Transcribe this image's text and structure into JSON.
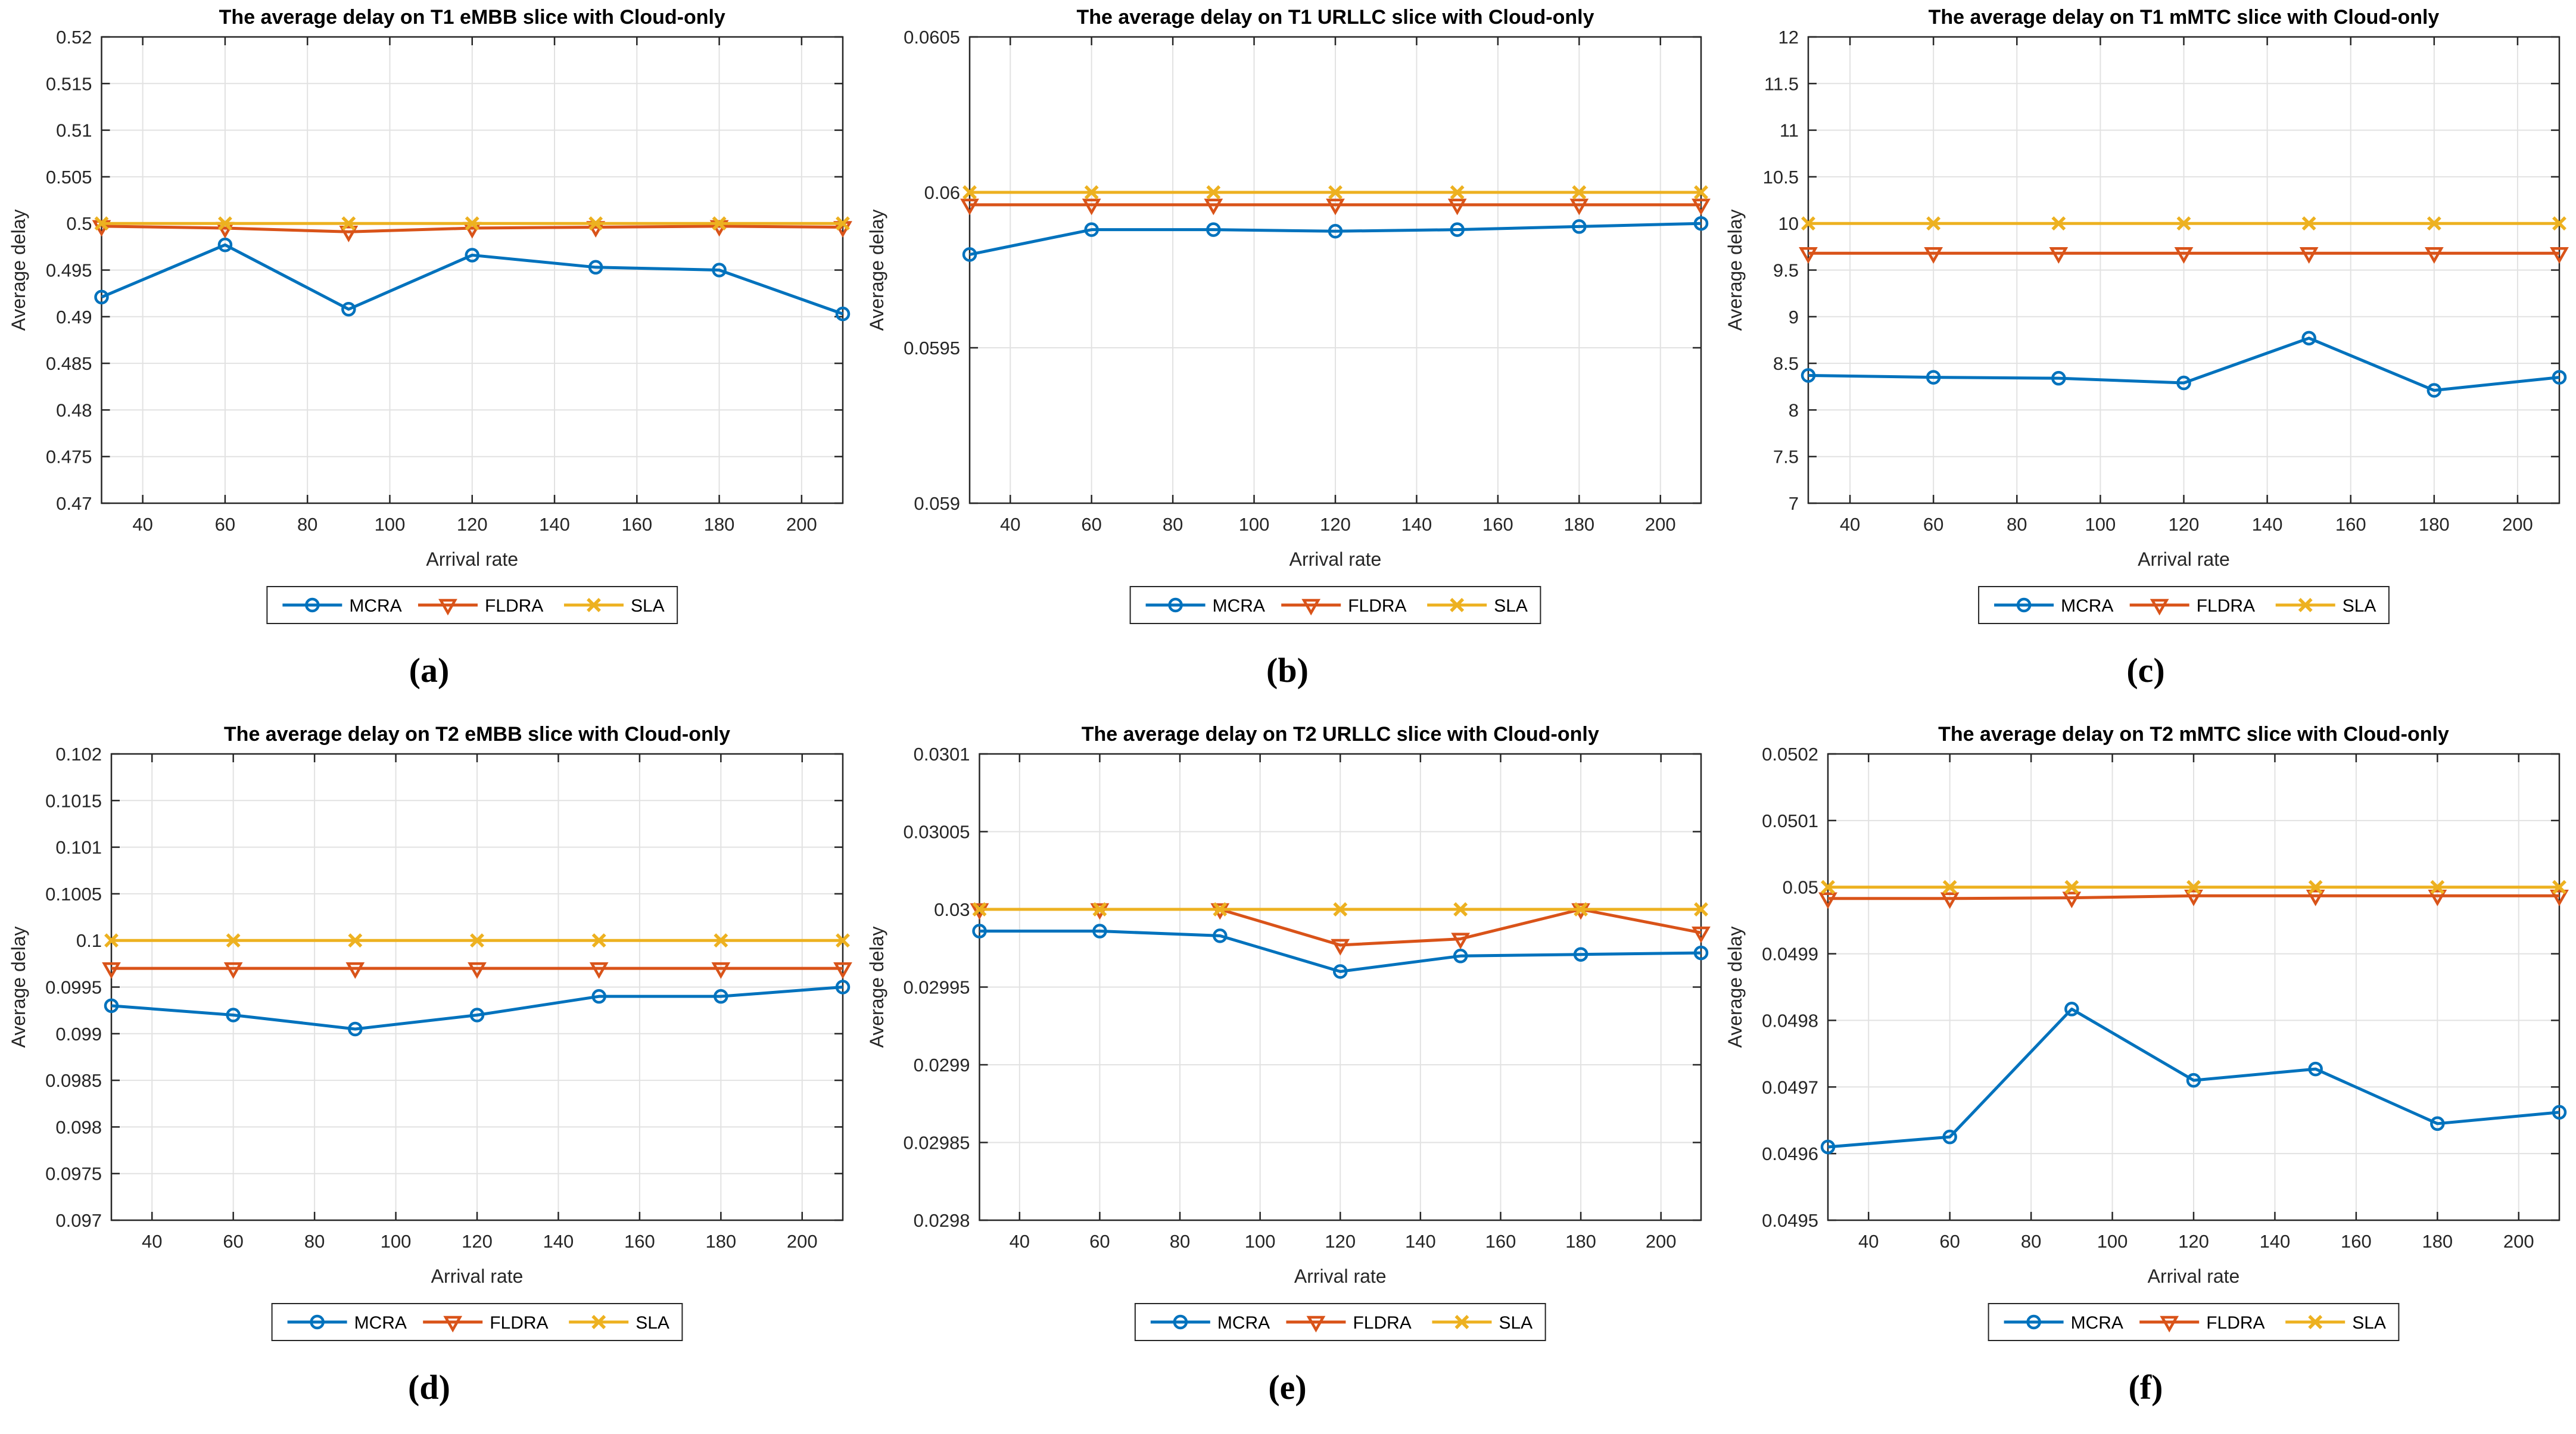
{
  "chart_colors": {
    "mcra": "#0072BD",
    "fldra": "#D95319",
    "sla": "#EDB120",
    "grid": "#E2E2E2",
    "axis": "#262626",
    "title": "#000000"
  },
  "chart_data": [
    {
      "type": "line",
      "panel_label": "(a)",
      "title": "The average delay on T1 eMBB slice with Cloud-only",
      "xlabel": "Arrival rate",
      "ylabel": "Average delay",
      "x": [
        30,
        60,
        90,
        120,
        150,
        180,
        210
      ],
      "xticks": [
        40,
        60,
        80,
        100,
        120,
        140,
        160,
        180,
        200
      ],
      "xlim": [
        30,
        210
      ],
      "ylim": [
        0.47,
        0.52
      ],
      "yticks": [
        0.47,
        0.475,
        0.48,
        0.485,
        0.49,
        0.495,
        0.5,
        0.505,
        0.51,
        0.515,
        0.52
      ],
      "grid": true,
      "legend_position": "below",
      "series": [
        {
          "name": "MCRA",
          "marker": "circle",
          "color": "#0072BD",
          "values": [
            0.4921,
            0.4977,
            0.4908,
            0.4966,
            0.4953,
            0.495,
            0.4903
          ]
        },
        {
          "name": "FLDRA",
          "marker": "triangle",
          "color": "#D95319",
          "values": [
            0.4997,
            0.4995,
            0.4991,
            0.4995,
            0.4996,
            0.4997,
            0.4996
          ]
        },
        {
          "name": "SLA",
          "marker": "x",
          "color": "#EDB120",
          "values": [
            0.5,
            0.5,
            0.5,
            0.5,
            0.5,
            0.5,
            0.5
          ]
        }
      ]
    },
    {
      "type": "line",
      "panel_label": "(b)",
      "title": "The average delay on T1 URLLC slice with Cloud-only",
      "xlabel": "Arrival rate",
      "ylabel": "Average delay",
      "x": [
        30,
        60,
        90,
        120,
        150,
        180,
        210
      ],
      "xticks": [
        40,
        60,
        80,
        100,
        120,
        140,
        160,
        180,
        200
      ],
      "xlim": [
        30,
        210
      ],
      "ylim": [
        0.059,
        0.0605
      ],
      "yticks": [
        0.059,
        0.0595,
        0.06,
        0.0605
      ],
      "grid": true,
      "legend_position": "below",
      "series": [
        {
          "name": "MCRA",
          "marker": "circle",
          "color": "#0072BD",
          "values": [
            0.0598,
            0.05988,
            0.05988,
            0.059875,
            0.05988,
            0.05989,
            0.0599
          ]
        },
        {
          "name": "FLDRA",
          "marker": "triangle",
          "color": "#D95319",
          "values": [
            0.05996,
            0.05996,
            0.05996,
            0.05996,
            0.05996,
            0.05996,
            0.05996
          ]
        },
        {
          "name": "SLA",
          "marker": "x",
          "color": "#EDB120",
          "values": [
            0.06,
            0.06,
            0.06,
            0.06,
            0.06,
            0.06,
            0.06
          ]
        }
      ]
    },
    {
      "type": "line",
      "panel_label": "(c)",
      "title": "The average delay on T1 mMTC slice with Cloud-only",
      "xlabel": "Arrival rate",
      "ylabel": "Average delay",
      "x": [
        30,
        60,
        90,
        120,
        150,
        180,
        210
      ],
      "xticks": [
        40,
        60,
        80,
        100,
        120,
        140,
        160,
        180,
        200
      ],
      "xlim": [
        30,
        210
      ],
      "ylim": [
        7,
        12
      ],
      "yticks": [
        7,
        7.5,
        8,
        8.5,
        9,
        9.5,
        10,
        10.5,
        11,
        11.5,
        12
      ],
      "grid": true,
      "legend_position": "below",
      "series": [
        {
          "name": "MCRA",
          "marker": "circle",
          "color": "#0072BD",
          "values": [
            8.37,
            8.35,
            8.34,
            8.29,
            8.77,
            8.21,
            8.35
          ]
        },
        {
          "name": "FLDRA",
          "marker": "triangle",
          "color": "#D95319",
          "values": [
            9.68,
            9.68,
            9.68,
            9.68,
            9.68,
            9.68,
            9.68
          ]
        },
        {
          "name": "SLA",
          "marker": "x",
          "color": "#EDB120",
          "values": [
            10,
            10,
            10,
            10,
            10,
            10,
            10
          ]
        }
      ]
    },
    {
      "type": "line",
      "panel_label": "(d)",
      "title": "The average delay on T2 eMBB slice with Cloud-only",
      "xlabel": "Arrival rate",
      "ylabel": "Average delay",
      "x": [
        30,
        60,
        90,
        120,
        150,
        180,
        210
      ],
      "xticks": [
        40,
        60,
        80,
        100,
        120,
        140,
        160,
        180,
        200
      ],
      "xlim": [
        30,
        210
      ],
      "ylim": [
        0.097,
        0.102
      ],
      "yticks": [
        0.097,
        0.0975,
        0.098,
        0.0985,
        0.099,
        0.0995,
        0.1,
        0.1005,
        0.101,
        0.1015,
        0.102
      ],
      "grid": true,
      "legend_position": "below",
      "series": [
        {
          "name": "MCRA",
          "marker": "circle",
          "color": "#0072BD",
          "values": [
            0.0993,
            0.0992,
            0.09905,
            0.0992,
            0.0994,
            0.0994,
            0.0995
          ]
        },
        {
          "name": "FLDRA",
          "marker": "triangle",
          "color": "#D95319",
          "values": [
            0.0997,
            0.0997,
            0.0997,
            0.0997,
            0.0997,
            0.0997,
            0.0997
          ]
        },
        {
          "name": "SLA",
          "marker": "x",
          "color": "#EDB120",
          "values": [
            0.1,
            0.1,
            0.1,
            0.1,
            0.1,
            0.1,
            0.1
          ]
        }
      ]
    },
    {
      "type": "line",
      "panel_label": "(e)",
      "title": "The average delay on T2 URLLC slice with Cloud-only",
      "xlabel": "Arrival rate",
      "ylabel": "Average delay",
      "x": [
        30,
        60,
        90,
        120,
        150,
        180,
        210
      ],
      "xticks": [
        40,
        60,
        80,
        100,
        120,
        140,
        160,
        180,
        200
      ],
      "xlim": [
        30,
        210
      ],
      "ylim": [
        0.0298,
        0.0301
      ],
      "yticks": [
        0.0298,
        0.02985,
        0.0299,
        0.02995,
        0.03,
        0.03005,
        0.0301
      ],
      "grid": true,
      "legend_position": "below",
      "series": [
        {
          "name": "MCRA",
          "marker": "circle",
          "color": "#0072BD",
          "values": [
            0.029986,
            0.029986,
            0.029983,
            0.02996,
            0.02997,
            0.029971,
            0.029972
          ]
        },
        {
          "name": "FLDRA",
          "marker": "triangle",
          "color": "#D95319",
          "values": [
            0.03,
            0.03,
            0.03,
            0.029977,
            0.029981,
            0.03,
            0.029985
          ]
        },
        {
          "name": "SLA",
          "marker": "x",
          "color": "#EDB120",
          "values": [
            0.03,
            0.03,
            0.03,
            0.03,
            0.03,
            0.03,
            0.03
          ]
        }
      ]
    },
    {
      "type": "line",
      "panel_label": "(f)",
      "title": "The average delay on T2 mMTC slice with Cloud-only",
      "xlabel": "Arrival rate",
      "ylabel": "Average delay",
      "x": [
        30,
        60,
        90,
        120,
        150,
        180,
        210
      ],
      "xticks": [
        40,
        60,
        80,
        100,
        120,
        140,
        160,
        180,
        200
      ],
      "xlim": [
        30,
        210
      ],
      "ylim": [
        0.0495,
        0.0502
      ],
      "yticks": [
        0.0495,
        0.0496,
        0.0497,
        0.0498,
        0.0499,
        0.05,
        0.0501,
        0.0502
      ],
      "grid": true,
      "legend_position": "below",
      "series": [
        {
          "name": "MCRA",
          "marker": "circle",
          "color": "#0072BD",
          "values": [
            0.04961,
            0.049625,
            0.049817,
            0.04971,
            0.049727,
            0.049645,
            0.049662
          ]
        },
        {
          "name": "FLDRA",
          "marker": "triangle",
          "color": "#D95319",
          "values": [
            0.049983,
            0.049983,
            0.049984,
            0.049987,
            0.049987,
            0.049987,
            0.049987
          ]
        },
        {
          "name": "SLA",
          "marker": "x",
          "color": "#EDB120",
          "values": [
            0.05,
            0.05,
            0.05,
            0.05,
            0.05,
            0.05,
            0.05
          ]
        }
      ]
    }
  ]
}
